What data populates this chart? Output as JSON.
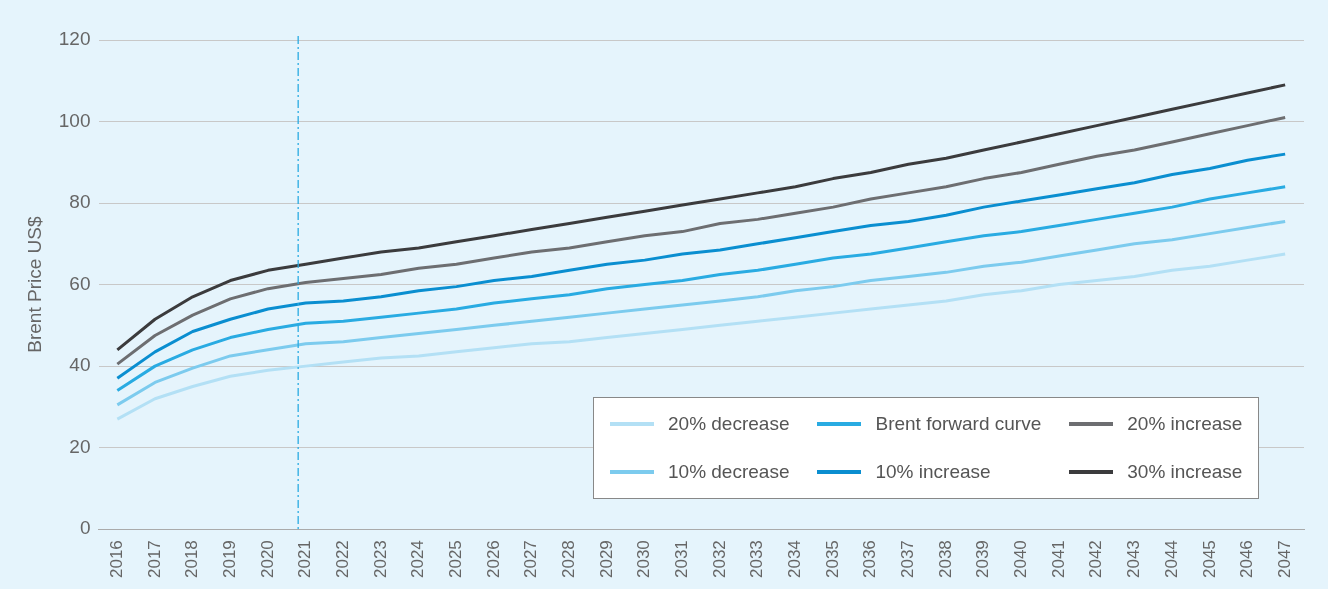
{
  "chart_data": {
    "type": "line",
    "ylabel": "Brent Price US$",
    "x": [
      2016,
      2017,
      2018,
      2019,
      2020,
      2021,
      2022,
      2023,
      2024,
      2025,
      2026,
      2027,
      2028,
      2029,
      2030,
      2031,
      2032,
      2033,
      2034,
      2035,
      2036,
      2037,
      2038,
      2039,
      2040,
      2041,
      2042,
      2043,
      2044,
      2045,
      2046,
      2047
    ],
    "xlim": [
      2015.5,
      2047.5
    ],
    "xticks": [
      2016,
      2017,
      2018,
      2019,
      2020,
      2021,
      2022,
      2023,
      2024,
      2025,
      2026,
      2027,
      2028,
      2029,
      2030,
      2031,
      2032,
      2033,
      2034,
      2035,
      2036,
      2037,
      2038,
      2039,
      2040,
      2041,
      2042,
      2043,
      2044,
      2045,
      2046,
      2047
    ],
    "ylim": [
      0,
      120
    ],
    "yticks": [
      0,
      20,
      40,
      60,
      80,
      100,
      120
    ],
    "grid": "y",
    "legend": "bottom right",
    "marker": "none",
    "line_style": "solid",
    "series": [
      {
        "name": "20% decrease",
        "color": "#b3e0f5",
        "values": [
          27,
          32,
          35,
          37.5,
          39,
          40,
          41,
          42,
          42.5,
          43.5,
          44.5,
          45.5,
          46,
          47,
          48,
          49,
          50,
          51,
          52,
          53,
          54,
          55,
          56,
          57.5,
          58.5,
          60,
          61,
          62,
          63.5,
          64.5,
          66,
          67.5
        ]
      },
      {
        "name": "10% decrease",
        "color": "#7ccbee",
        "values": [
          30.5,
          36,
          39.5,
          42.5,
          44,
          45.5,
          46,
          47,
          48,
          49,
          50,
          51,
          52,
          53,
          54,
          55,
          56,
          57,
          58.5,
          59.5,
          61,
          62,
          63,
          64.5,
          65.5,
          67,
          68.5,
          70,
          71,
          72.5,
          74,
          75.5
        ]
      },
      {
        "name": "Brent forward curve",
        "color": "#29abe2",
        "values": [
          34,
          40,
          44,
          47,
          49,
          50.5,
          51,
          52,
          53,
          54,
          55.5,
          56.5,
          57.5,
          59,
          60,
          61,
          62.5,
          63.5,
          65,
          66.5,
          67.5,
          69,
          70.5,
          72,
          73,
          74.5,
          76,
          77.5,
          79,
          81,
          82.5,
          84
        ]
      },
      {
        "name": "10% increase",
        "color": "#0a8ed0",
        "values": [
          37,
          43.5,
          48.5,
          51.5,
          54,
          55.5,
          56,
          57,
          58.5,
          59.5,
          61,
          62,
          63.5,
          65,
          66,
          67.5,
          68.5,
          70,
          71.5,
          73,
          74.5,
          75.5,
          77,
          79,
          80.5,
          82,
          83.5,
          85,
          87,
          88.5,
          90.5,
          92
        ]
      },
      {
        "name": "20% increase",
        "color": "#6d6e71",
        "values": [
          40.5,
          47.5,
          52.5,
          56.5,
          59,
          60.5,
          61.5,
          62.5,
          64,
          65,
          66.5,
          68,
          69,
          70.5,
          72,
          73,
          75,
          76,
          77.5,
          79,
          81,
          82.5,
          84,
          86,
          87.5,
          89.5,
          91.5,
          93,
          95,
          97,
          99,
          101
        ]
      },
      {
        "name": "30% increase",
        "color": "#3b3b3d",
        "values": [
          44,
          51.5,
          57,
          61,
          63.5,
          65,
          66.5,
          68,
          69,
          70.5,
          72,
          73.5,
          75,
          76.5,
          78,
          79.5,
          81,
          82.5,
          84,
          86,
          87.5,
          89.5,
          91,
          93,
          95,
          97,
          99,
          101,
          103,
          105,
          107,
          109
        ]
      }
    ],
    "ref_lines": [
      {
        "axis": "x",
        "value": 2020.8,
        "color": "#29abe2",
        "line_style": "dashdot"
      }
    ]
  }
}
